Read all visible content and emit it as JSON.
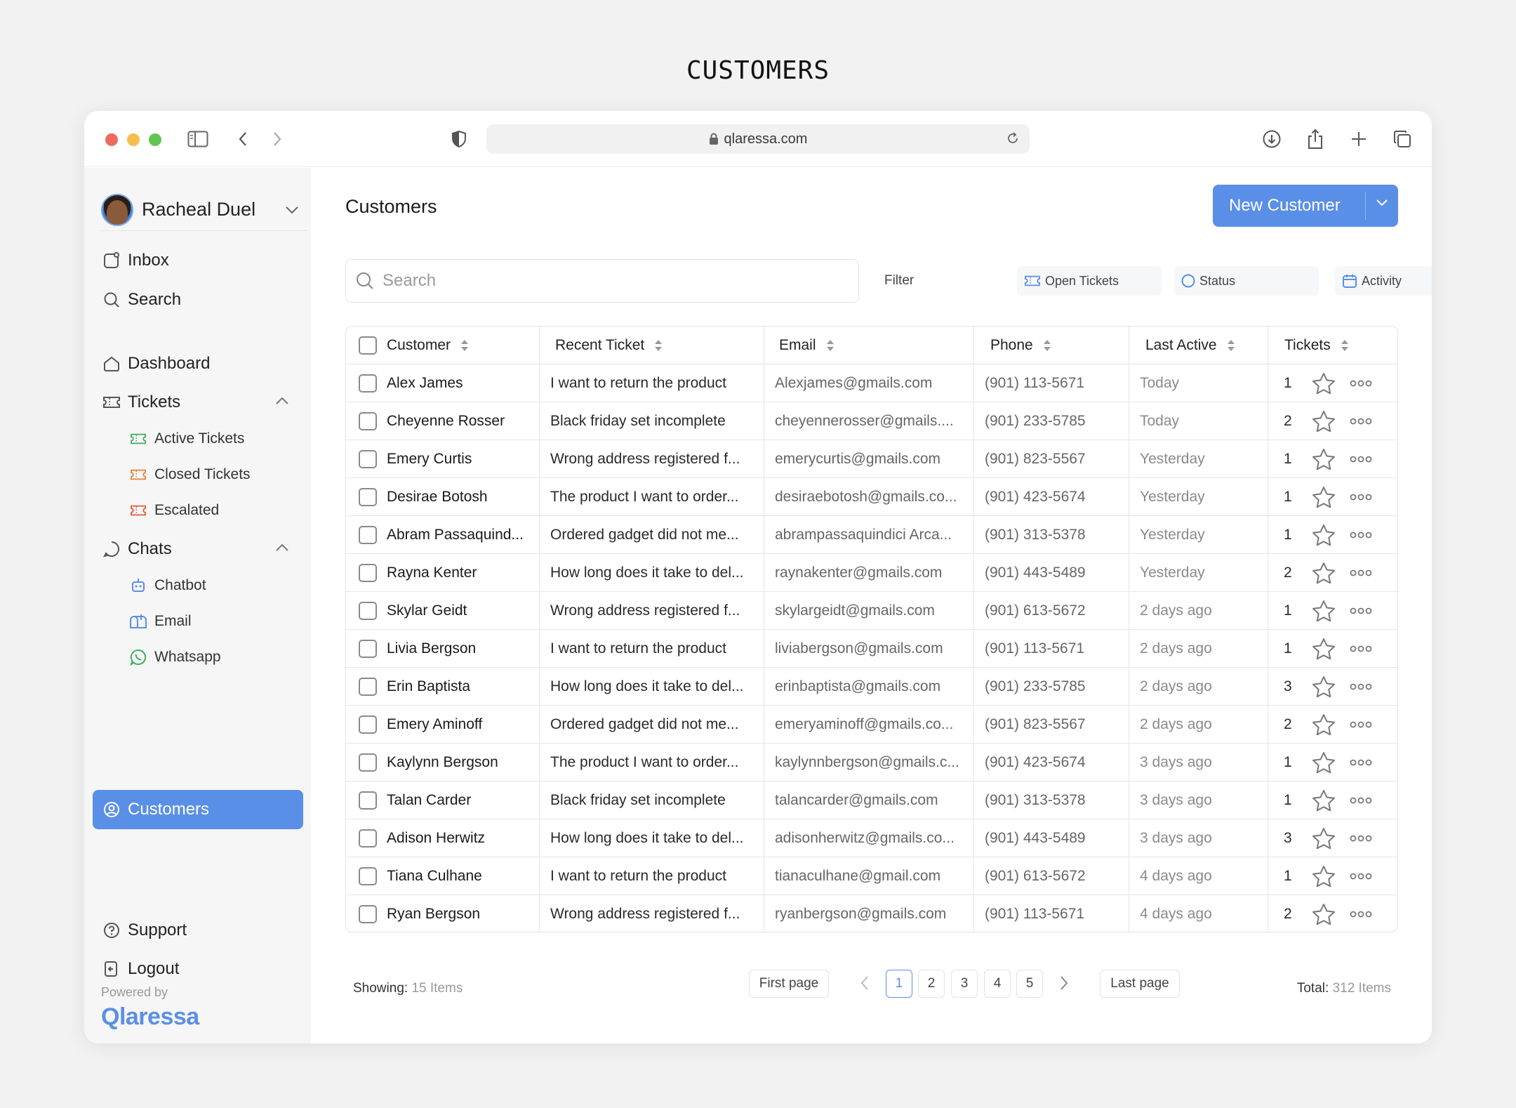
{
  "page_heading": "CUSTOMERS",
  "browser": {
    "url": "qlaressa.com"
  },
  "sidebar": {
    "user_name": "Racheal Duel",
    "items": {
      "inbox": "Inbox",
      "search": "Search",
      "dashboard": "Dashboard",
      "tickets": "Tickets",
      "active_tickets": "Active Tickets",
      "closed_tickets": "Closed Tickets",
      "escalated": "Escalated",
      "chats": "Chats",
      "chatbot": "Chatbot",
      "email": "Email",
      "whatsapp": "Whatsapp",
      "customers": "Customers",
      "support": "Support",
      "logout": "Logout"
    },
    "powered_by": "Powered by",
    "brand": "Qlaressa"
  },
  "main": {
    "title": "Customers",
    "new_button": "New Customer",
    "search_placeholder": "Search",
    "filter_label": "Filter",
    "filters": [
      "Open Tickets",
      "Status",
      "Activity"
    ]
  },
  "table": {
    "headers": [
      "Customer",
      "Recent Ticket",
      "Email",
      "Phone",
      "Last Active",
      "Tickets"
    ],
    "rows": [
      {
        "customer": "Alex James",
        "ticket": "I want to return the product",
        "email": "Alexjames@gmails.com",
        "phone": "(901) 113-5671",
        "last": "Today",
        "tickets": "1"
      },
      {
        "customer": "Cheyenne Rosser",
        "ticket": "Black friday set incomplete",
        "email": "cheyennerosser@gmails....",
        "phone": "(901) 233-5785",
        "last": "Today",
        "tickets": "2"
      },
      {
        "customer": "Emery Curtis",
        "ticket": "Wrong address registered f...",
        "email": "emerycurtis@gmails.com",
        "phone": "(901) 823-5567",
        "last": "Yesterday",
        "tickets": "1"
      },
      {
        "customer": "Desirae Botosh",
        "ticket": "The product I want to order...",
        "email": "desiraebotosh@gmails.co...",
        "phone": "(901) 423-5674",
        "last": "Yesterday",
        "tickets": "1"
      },
      {
        "customer": "Abram Passaquind...",
        "ticket": "Ordered gadget did not me...",
        "email": "abrampassaquindici Arca...",
        "phone": "(901) 313-5378",
        "last": "Yesterday",
        "tickets": "1"
      },
      {
        "customer": "Rayna Kenter",
        "ticket": "How long does it take to del...",
        "email": "raynakenter@gmails.com",
        "phone": "(901) 443-5489",
        "last": "Yesterday",
        "tickets": "2"
      },
      {
        "customer": "Skylar Geidt",
        "ticket": "Wrong address registered f...",
        "email": "skylargeidt@gmails.com",
        "phone": "(901) 613-5672",
        "last": "2 days ago",
        "tickets": "1"
      },
      {
        "customer": "Livia Bergson",
        "ticket": "I want to return the product",
        "email": "liviabergson@gmails.com",
        "phone": "(901)  113-5671",
        "last": "2 days ago",
        "tickets": "1"
      },
      {
        "customer": "Erin Baptista",
        "ticket": "How long does it take to del...",
        "email": "erinbaptista@gmails.com",
        "phone": "(901) 233-5785",
        "last": "2 days ago",
        "tickets": "3"
      },
      {
        "customer": "Emery Aminoff",
        "ticket": "Ordered gadget did not me...",
        "email": "emeryaminoff@gmails.co...",
        "phone": "(901) 823-5567",
        "last": "2 days ago",
        "tickets": "2"
      },
      {
        "customer": "Kaylynn Bergson",
        "ticket": "The product I want to order...",
        "email": "kaylynnbergson@gmails.c...",
        "phone": "(901) 423-5674",
        "last": "3 days ago",
        "tickets": "1"
      },
      {
        "customer": "Talan Carder",
        "ticket": "Black friday set incomplete",
        "email": "talancarder@gmails.com",
        "phone": "(901) 313-5378",
        "last": "3 days ago",
        "tickets": "1"
      },
      {
        "customer": "Adison Herwitz",
        "ticket": "How long does it take to del...",
        "email": "adisonherwitz@gmails.co...",
        "phone": "(901) 443-5489",
        "last": "3 days ago",
        "tickets": "3"
      },
      {
        "customer": "Tiana Culhane",
        "ticket": "I want to return the product",
        "email": "tianaculhane@gmail.com",
        "phone": "(901) 613-5672",
        "last": "4 days ago",
        "tickets": "1"
      },
      {
        "customer": "Ryan Bergson",
        "ticket": "Wrong address registered f...",
        "email": "ryanbergson@gmails.com",
        "phone": "(901) 113-5671",
        "last": "4 days ago",
        "tickets": "2"
      }
    ]
  },
  "footer": {
    "showing_label": "Showing:",
    "showing_value": "15 Items",
    "first_page": "First page",
    "last_page": "Last page",
    "pages": [
      "1",
      "2",
      "3",
      "4",
      "5"
    ],
    "current_page": "1",
    "total_label": "Total:",
    "total_value": "312 Items"
  },
  "colors": {
    "accent": "#5a8fe8",
    "active_ticket_icon": "#3fae5a",
    "closed_ticket_icon": "#e8813a",
    "escalated_icon": "#e85a3a"
  }
}
